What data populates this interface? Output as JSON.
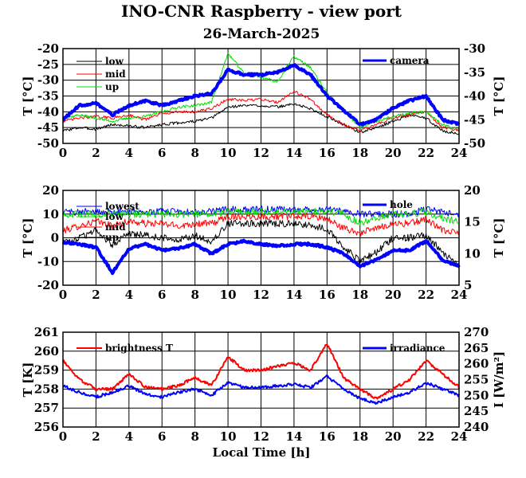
{
  "title": "INO-CNR Raspberry - view port",
  "subtitle": "26-March-2025",
  "xlabel": "Local Time [h]",
  "chart_data": [
    {
      "type": "line",
      "x_range": [
        0,
        24
      ],
      "x_ticks": [
        0,
        2,
        4,
        6,
        8,
        10,
        12,
        14,
        16,
        18,
        20,
        22,
        24
      ],
      "ylabel": "T [°C]",
      "ylim": [
        -50,
        -20
      ],
      "y_ticks": [
        -50,
        -45,
        -40,
        -35,
        -30,
        -25,
        -20
      ],
      "y2label": "T [°C]",
      "y2lim": [
        -50,
        -30
      ],
      "y2_ticks": [
        -50,
        -45,
        -40,
        -35,
        -30
      ],
      "grid": true,
      "legend_left": "top-left",
      "legend_right": "top-right",
      "x": [
        0,
        1,
        2,
        3,
        4,
        5,
        6,
        7,
        8,
        9,
        10,
        11,
        12,
        13,
        14,
        15,
        16,
        17,
        18,
        19,
        20,
        21,
        22,
        23,
        24
      ],
      "series": [
        {
          "name": "low",
          "axis": "left",
          "color": "#000000",
          "width": 1,
          "values": [
            -46,
            -45,
            -45.5,
            -44,
            -44.5,
            -45,
            -44,
            -43.5,
            -43,
            -42,
            -38.5,
            -38,
            -38,
            -38.5,
            -37.5,
            -39,
            -41.5,
            -44,
            -46.5,
            -45,
            -43,
            -41,
            -42,
            -46,
            -47
          ]
        },
        {
          "name": "mid",
          "axis": "left",
          "color": "#ff0000",
          "width": 1,
          "values": [
            -43,
            -42,
            -41.5,
            -42,
            -41,
            -42.5,
            -40.5,
            -40,
            -40,
            -39,
            -36,
            -36.5,
            -36,
            -37,
            -33.5,
            -36,
            -41,
            -44,
            -46,
            -44,
            -42,
            -41,
            -40,
            -45,
            -46
          ]
        },
        {
          "name": "up",
          "axis": "left",
          "color": "#00dd00",
          "width": 1,
          "values": [
            -42,
            -41,
            -42,
            -43,
            -42,
            -41.5,
            -40,
            -38.5,
            -38,
            -37,
            -21.5,
            -28,
            -29,
            -30.5,
            -22.5,
            -26,
            -34,
            -39.5,
            -45,
            -43,
            -41.5,
            -40.5,
            -40,
            -44,
            -45.5
          ]
        },
        {
          "name": "camera",
          "axis": "right",
          "color": "#0000ff",
          "width": 4,
          "values": [
            -45,
            -42,
            -41.5,
            -44,
            -42,
            -41,
            -42,
            -41,
            -40,
            -39.5,
            -34.5,
            -35.5,
            -35.5,
            -35,
            -33.5,
            -35.5,
            -40,
            -43,
            -46,
            -45,
            -42.5,
            -41,
            -40,
            -45,
            -46
          ]
        }
      ]
    },
    {
      "type": "line",
      "x_range": [
        0,
        24
      ],
      "x_ticks": [
        0,
        2,
        4,
        6,
        8,
        10,
        12,
        14,
        16,
        18,
        20,
        22,
        24
      ],
      "ylabel": "T [°C]",
      "ylim": [
        -20,
        20
      ],
      "y_ticks": [
        -20,
        -10,
        0,
        10,
        20
      ],
      "y2label": "T [°C]",
      "y2lim": [
        5,
        20
      ],
      "y2_ticks": [
        5,
        10,
        15,
        20
      ],
      "grid": true,
      "legend_left": "top-left",
      "legend_right": "top-right",
      "x": [
        0,
        1,
        2,
        3,
        4,
        5,
        6,
        7,
        8,
        9,
        10,
        11,
        12,
        13,
        14,
        15,
        16,
        17,
        18,
        19,
        20,
        21,
        22,
        23,
        24
      ],
      "series": [
        {
          "name": "lowest",
          "axis": "left",
          "color": "#0000ff",
          "width": 1,
          "values": [
            11,
            11,
            11,
            11,
            11,
            11,
            11,
            11,
            11,
            11,
            12,
            12,
            12,
            12,
            12,
            12,
            12,
            11,
            10,
            10,
            10,
            10,
            12,
            11,
            10
          ]
        },
        {
          "name": "low",
          "axis": "left",
          "color": "#00dd00",
          "width": 1,
          "values": [
            10,
            10,
            10,
            10,
            10,
            10,
            10,
            10,
            10,
            10,
            11,
            11,
            11,
            11,
            11,
            11,
            11,
            10,
            6,
            8,
            10,
            10,
            11,
            8,
            7
          ]
        },
        {
          "name": "mid",
          "axis": "left",
          "color": "#ff0000",
          "width": 1,
          "values": [
            3,
            5,
            7,
            5,
            7,
            6,
            6,
            5,
            6,
            6,
            9,
            9,
            9,
            9,
            9,
            9,
            8,
            4,
            2,
            4,
            6,
            6,
            8,
            3,
            2
          ]
        },
        {
          "name": "up",
          "axis": "left",
          "color": "#000000",
          "width": 1,
          "values": [
            -2,
            0,
            3,
            -3,
            2,
            1,
            0,
            -1,
            1,
            -2,
            6,
            6,
            6,
            6,
            6,
            5,
            4,
            -4,
            -10,
            -6,
            0,
            0,
            1,
            -6,
            -12
          ]
        },
        {
          "name": "hole",
          "axis": "right",
          "color": "#0000ff",
          "width": 4,
          "values": [
            11.8,
            11.5,
            11,
            7,
            10.8,
            11.5,
            10.5,
            10.8,
            11.5,
            10,
            11.5,
            12,
            11.5,
            11.2,
            11.5,
            11.5,
            11,
            10,
            8,
            9,
            10.5,
            10.5,
            12,
            9,
            8
          ]
        }
      ]
    },
    {
      "type": "line",
      "x_range": [
        0,
        24
      ],
      "x_ticks": [
        0,
        2,
        4,
        6,
        8,
        10,
        12,
        14,
        16,
        18,
        20,
        22,
        24
      ],
      "ylabel": "T [K]",
      "ylim": [
        256,
        261
      ],
      "y_ticks": [
        256,
        257,
        258,
        259,
        260,
        261
      ],
      "y2label": "I [W/m²]",
      "y2lim": [
        240,
        270
      ],
      "y2_ticks": [
        240,
        245,
        250,
        255,
        260,
        265,
        270
      ],
      "grid": true,
      "legend_left": "top-left",
      "legend_right": "top-right",
      "x": [
        0,
        1,
        2,
        3,
        4,
        5,
        6,
        7,
        8,
        9,
        10,
        11,
        12,
        13,
        14,
        15,
        16,
        17,
        18,
        19,
        20,
        21,
        22,
        23,
        24
      ],
      "series": [
        {
          "name": "brightness T",
          "axis": "left",
          "color": "#ff0000",
          "width": 2,
          "values": [
            259.5,
            258.5,
            258,
            258,
            258.8,
            258.1,
            258,
            258.2,
            258.6,
            258.2,
            259.7,
            259,
            259,
            259.2,
            259.4,
            259,
            260.4,
            258.6,
            258,
            257.5,
            258,
            258.5,
            259.5,
            258.8,
            258.1
          ]
        },
        {
          "name": "irradiance",
          "axis": "right",
          "color": "#0000ff",
          "width": 2,
          "values": [
            253,
            251,
            249.5,
            251,
            253,
            250.5,
            249.5,
            251,
            252,
            250,
            254,
            252.5,
            252.5,
            253,
            253.5,
            252.5,
            256,
            252,
            249,
            247.5,
            249.5,
            251,
            254,
            252,
            250
          ]
        }
      ]
    }
  ]
}
